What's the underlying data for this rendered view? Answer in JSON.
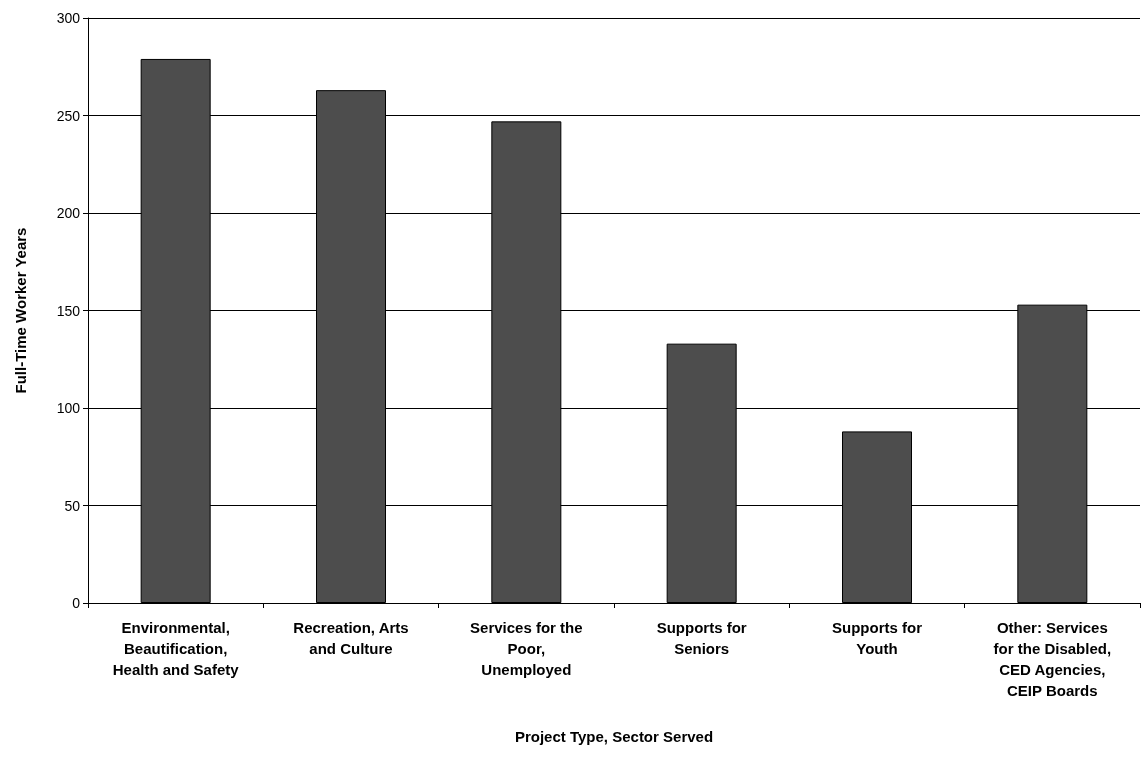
{
  "chart_data": {
    "type": "bar",
    "xlabel": "Project Type, Sector Served",
    "ylabel": "Full-Time Worker Years",
    "categories": [
      "Environmental,\nBeautification,\nHealth and Safety",
      "Recreation, Arts\nand Culture",
      "Services for the\nPoor,\nUnemployed",
      "Supports for\nSeniors",
      "Supports for\nYouth",
      "Other: Services\nfor the Disabled,\nCED Agencies,\nCEIP Boards"
    ],
    "values": [
      279,
      263,
      247,
      133,
      88,
      153
    ],
    "color": "#4d4d4d",
    "ylim": [
      0,
      300
    ],
    "yticks": [
      0,
      50,
      100,
      150,
      200,
      250,
      300
    ],
    "grid": "y"
  }
}
